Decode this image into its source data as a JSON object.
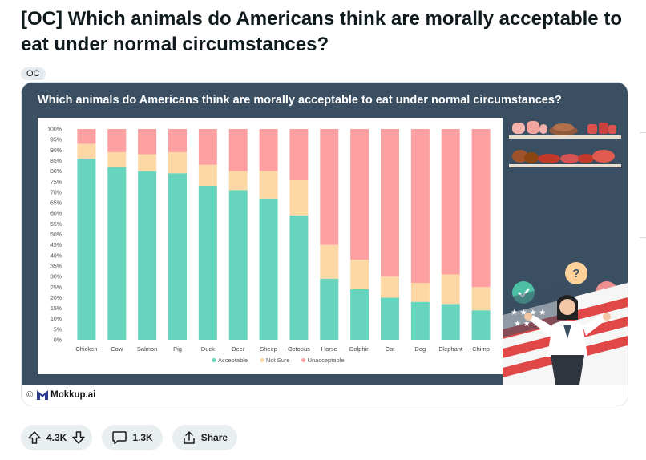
{
  "post": {
    "title": "[OC] Which animals do Americans think are morally acceptable to eat under normal circumstances?",
    "flair": "OC"
  },
  "infographic": {
    "title": "Which animals do Americans think are morally acceptable to eat under normal circumstances?",
    "copyright": "©",
    "brand": "Mokkup.ai",
    "icons": [
      "meat-food-plates-icon",
      "check-icon",
      "question-mark-icon",
      "cross-icon",
      "confused-woman-illustration",
      "american-flag-icon"
    ]
  },
  "chart_data": {
    "type": "bar",
    "stacked": true,
    "percent": true,
    "title": "Which animals do Americans think are morally acceptable to eat under normal circumstances?",
    "categories": [
      "Chicken",
      "Cow",
      "Salmon",
      "Pig",
      "Duck",
      "Deer",
      "Sheep",
      "Octopus",
      "Horse",
      "Dolphin",
      "Cat",
      "Dog",
      "Elephant",
      "Chimp"
    ],
    "series": [
      {
        "name": "Acceptable",
        "color": "#67d4bd",
        "values": [
          86,
          82,
          80,
          79,
          73,
          71,
          67,
          59,
          29,
          24,
          20,
          18,
          17,
          14
        ]
      },
      {
        "name": "Not Sure",
        "color": "#fdd8a5",
        "values": [
          7,
          7,
          8,
          10,
          10,
          9,
          13,
          17,
          16,
          14,
          10,
          9,
          14,
          11
        ]
      },
      {
        "name": "Unacceptable",
        "color": "#fca0a1",
        "values": [
          7,
          11,
          12,
          11,
          17,
          20,
          20,
          24,
          55,
          62,
          70,
          73,
          69,
          75
        ]
      }
    ],
    "yticks": [
      "100%",
      "95%",
      "90%",
      "85%",
      "80%",
      "75%",
      "70%",
      "65%",
      "60%",
      "55%",
      "50%",
      "45%",
      "40%",
      "35%",
      "30%",
      "25%",
      "20%",
      "15%",
      "10%",
      "5%",
      "0%"
    ],
    "ylim": [
      0,
      100
    ],
    "legend_position": "bottom-center",
    "grid": false
  },
  "actions": {
    "upvotes": "4.3K",
    "comments": "1.3K",
    "share_label": "Share"
  },
  "colors": {
    "infographic_bg": "#3b4f63",
    "acceptable": "#67d4bd",
    "not_sure": "#fdd8a5",
    "unacceptable": "#fca0a1",
    "pill_bg": "#e9eef0"
  }
}
